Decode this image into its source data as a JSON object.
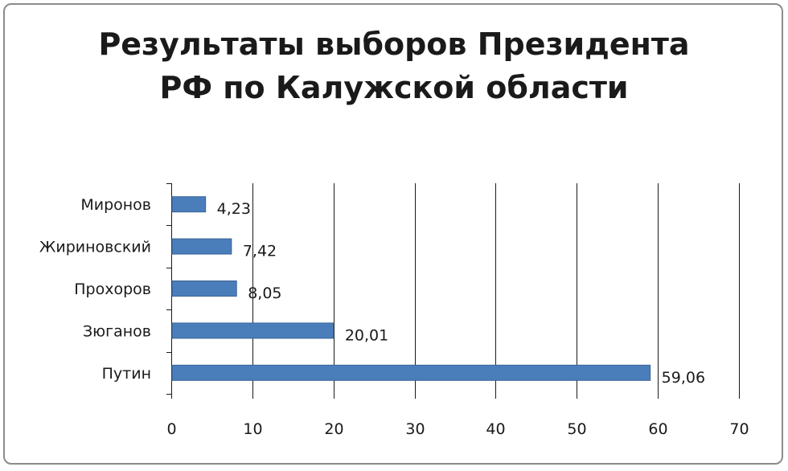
{
  "chart_data": {
    "type": "bar",
    "orientation": "horizontal",
    "title_lines": [
      "Результаты выборов Президента",
      "РФ по Калужской области"
    ],
    "categories": [
      "Путин",
      "Зюганов",
      "Прохоров",
      "Жириновский",
      "Миронов"
    ],
    "values": [
      59.06,
      20.01,
      8.05,
      7.42,
      4.23
    ],
    "value_labels": [
      "59,06",
      "20,01",
      "8,05",
      "7,42",
      "4,23"
    ],
    "x_ticks": [
      0,
      10,
      20,
      30,
      40,
      50,
      60,
      70
    ],
    "xlim": [
      0,
      70
    ],
    "grid": "vertical",
    "legend": "none",
    "xlabel": "",
    "ylabel": "",
    "bar_color": "#4a7ebb",
    "bar_border": "#3a6396",
    "grid_color": "#1a1a1a"
  }
}
